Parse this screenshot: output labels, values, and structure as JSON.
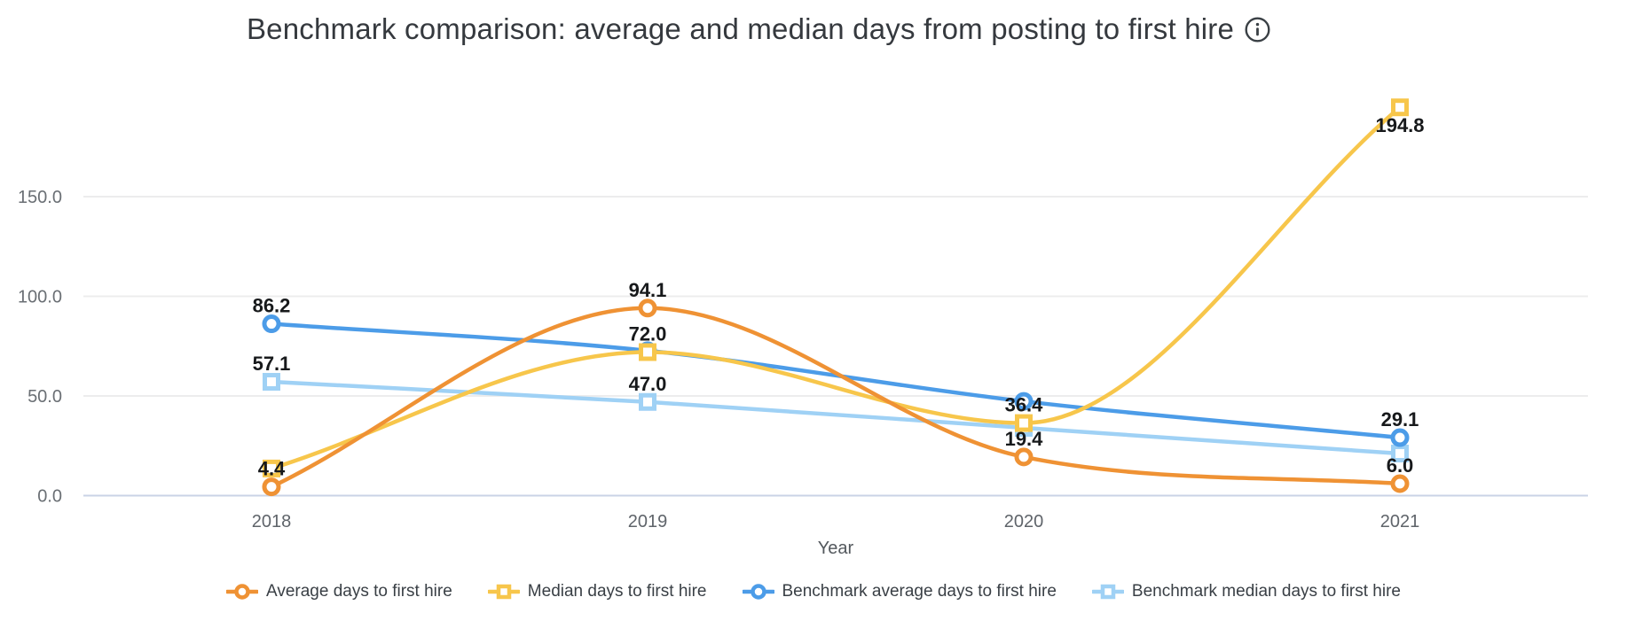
{
  "title": "Benchmark comparison: average and median days from posting to first hire",
  "info_icon": "info-icon",
  "colors": {
    "background": "#FFFFFF",
    "title": "#35393E",
    "grid": "#ECECED",
    "zero_axis": "#C9D3E6",
    "y_tick_text": "#6A6F74",
    "x_tick_text": "#5F646A",
    "axis_title_text": "#53585D",
    "data_label_text": "#17191B",
    "legend_text": "#393F45"
  },
  "chart_data": {
    "type": "line",
    "title": "Benchmark comparison: average and median days from posting to first hire",
    "xlabel": "Year",
    "ylabel": "",
    "categories": [
      "2018",
      "2019",
      "2020",
      "2021"
    ],
    "ylim": [
      0,
      207
    ],
    "y_ticks": [
      {
        "label": "0.0",
        "value": 0
      },
      {
        "label": "50.0",
        "value": 50
      },
      {
        "label": "100.0",
        "value": 100
      },
      {
        "label": "150.0",
        "value": 150
      }
    ],
    "grid": true,
    "curve": "monotone",
    "legend_position": "bottom",
    "series": [
      {
        "name": "Average days to first hire",
        "color": "#EF9234",
        "marker": "circle",
        "values": [
          4.4,
          94.1,
          19.4,
          6.0
        ],
        "point_labels": [
          {
            "text": "4.4",
            "position": "above"
          },
          {
            "text": "94.1",
            "position": "above"
          },
          {
            "text": "19.4",
            "position": "above"
          },
          {
            "text": "6.0",
            "position": "above"
          }
        ]
      },
      {
        "name": "Median days to first hire",
        "color": "#F7C64B",
        "marker": "square",
        "values": [
          13.6,
          72.0,
          36.4,
          194.8
        ],
        "point_labels": [
          null,
          {
            "text": "72.0",
            "position": "above"
          },
          {
            "text": "36.4",
            "position": "above"
          },
          {
            "text": "194.8",
            "position": "below"
          }
        ]
      },
      {
        "name": "Benchmark average days to first hire",
        "color": "#4C9CE8",
        "marker": "circle",
        "values": [
          86.2,
          72.7,
          47.3,
          29.1
        ],
        "point_labels": [
          {
            "text": "86.2",
            "position": "above"
          },
          null,
          null,
          {
            "text": "29.1",
            "position": "above"
          }
        ]
      },
      {
        "name": "Benchmark median days to first hire",
        "color": "#9FD1F5",
        "marker": "square",
        "values": [
          57.1,
          47.0,
          34.0,
          21.1
        ],
        "point_labels": [
          {
            "text": "57.1",
            "position": "above"
          },
          {
            "text": "47.0",
            "position": "above"
          },
          null,
          null
        ]
      }
    ]
  }
}
